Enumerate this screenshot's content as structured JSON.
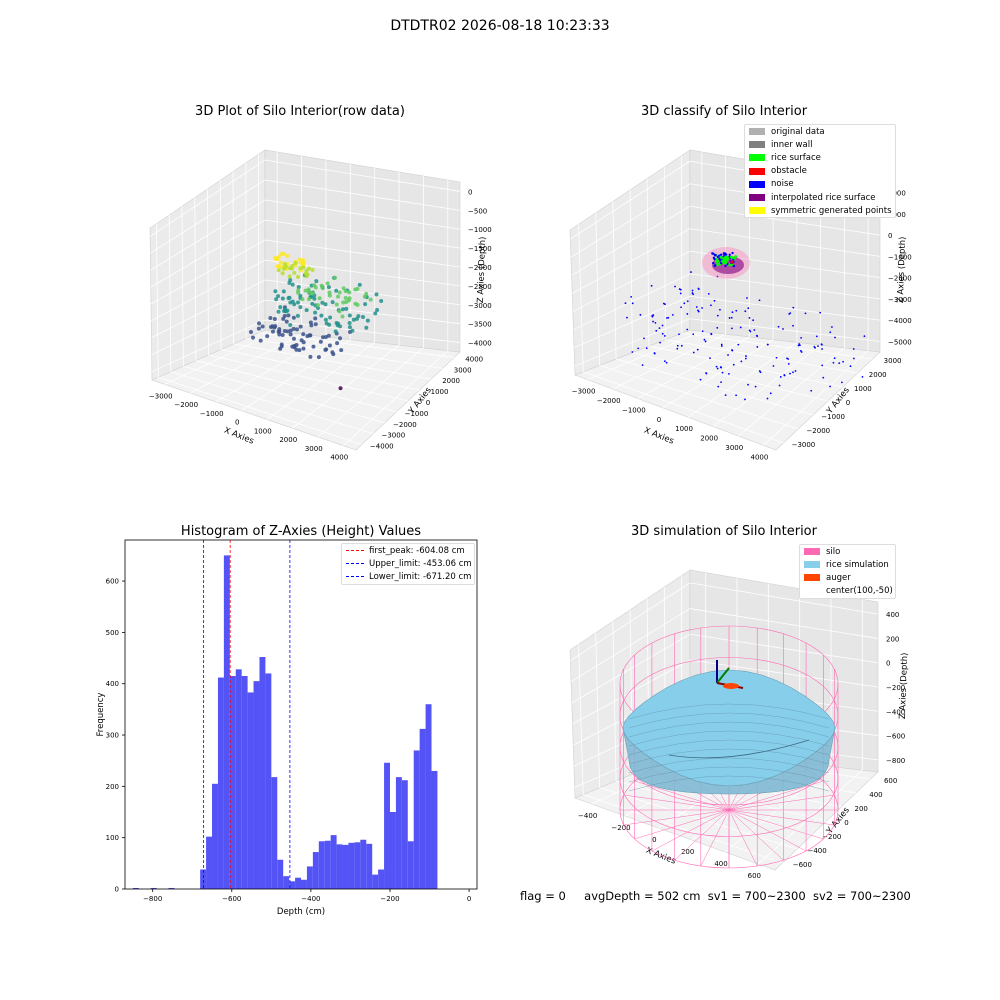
{
  "figure": {
    "suptitle": "DTDTR02 2026-08-18 10:23:33"
  },
  "footer": {
    "flag": "flag = 0",
    "avg_depth": "avgDepth = 502 cm",
    "sv1": "sv1 = 700~2300",
    "sv2": "sv2 = 700~2300"
  },
  "chart_data": [
    {
      "type": "scatter",
      "title": "3D Plot of Silo Interior(row data)",
      "xlabel": "X Axies",
      "ylabel": "Y Axies",
      "zlabel": "Z Axies (Depth)",
      "x_ticks": [
        "−3000",
        "−2000",
        "−1000",
        "0",
        "1000",
        "2000",
        "3000",
        "4000"
      ],
      "y_ticks": [
        "−4000",
        "−3000",
        "−2000",
        "−1000",
        "0",
        "1000",
        "2000",
        "3000",
        "4000"
      ],
      "z_ticks": [
        "−4000",
        "−3500",
        "−3000",
        "−2500",
        "−2000",
        "−1500",
        "−1000",
        "−500",
        "0"
      ],
      "colormap": "viridis",
      "grid": true
    },
    {
      "type": "scatter",
      "title": "3D classify of Silo Interior",
      "xlabel": "X Axies",
      "ylabel": "Y Axies",
      "zlabel": "Z Axies (Depth)",
      "x_ticks": [
        "−3000",
        "−2000",
        "−1000",
        "0",
        "1000",
        "2000",
        "3000",
        "4000"
      ],
      "y_ticks": [
        "−3000",
        "−2000",
        "−1000",
        "0",
        "1000",
        "2000",
        "3000"
      ],
      "z_ticks": [
        "−5000",
        "−4000",
        "−3000",
        "−2000",
        "−1000",
        "0",
        "1000",
        "2000"
      ],
      "legend": [
        {
          "label": "original data",
          "color": "#b0b0b0"
        },
        {
          "label": "inner wall",
          "color": "#808080"
        },
        {
          "label": "rice surface",
          "color": "#00ff00"
        },
        {
          "label": "obstacle",
          "color": "#ff0000"
        },
        {
          "label": "noise",
          "color": "#0000ff"
        },
        {
          "label": "interpolated rice surface",
          "color": "#800080"
        },
        {
          "label": "symmetric generated points",
          "color": "#ffff00"
        }
      ],
      "legend_position": "top-right",
      "grid": true
    },
    {
      "type": "bar",
      "title": "Histogram of Z-Axies (Height) Values",
      "xlabel": "Depth (cm)",
      "ylabel": "Frequency",
      "xlim": [
        -870,
        20
      ],
      "ylim": [
        0,
        680
      ],
      "x_ticks": [
        -800,
        -600,
        -400,
        -200,
        0
      ],
      "y_ticks": [
        0,
        100,
        200,
        300,
        400,
        500,
        600
      ],
      "bar_color": "#4b4bf5",
      "bins": [
        {
          "x0": -850,
          "x1": -835,
          "count": 2
        },
        {
          "x0": -805,
          "x1": -790,
          "count": 2
        },
        {
          "x0": -760,
          "x1": -745,
          "count": 2
        },
        {
          "x0": -680,
          "x1": -665,
          "count": 38
        },
        {
          "x0": -665,
          "x1": -650,
          "count": 102
        },
        {
          "x0": -650,
          "x1": -635,
          "count": 205
        },
        {
          "x0": -635,
          "x1": -620,
          "count": 412
        },
        {
          "x0": -620,
          "x1": -605,
          "count": 650
        },
        {
          "x0": -605,
          "x1": -590,
          "count": 415
        },
        {
          "x0": -590,
          "x1": -575,
          "count": 428
        },
        {
          "x0": -575,
          "x1": -560,
          "count": 415
        },
        {
          "x0": -560,
          "x1": -545,
          "count": 383
        },
        {
          "x0": -545,
          "x1": -530,
          "count": 405
        },
        {
          "x0": -530,
          "x1": -515,
          "count": 452
        },
        {
          "x0": -515,
          "x1": -500,
          "count": 420
        },
        {
          "x0": -500,
          "x1": -485,
          "count": 218
        },
        {
          "x0": -485,
          "x1": -470,
          "count": 57
        },
        {
          "x0": -470,
          "x1": -455,
          "count": 25
        },
        {
          "x0": -455,
          "x1": -440,
          "count": 15
        },
        {
          "x0": -440,
          "x1": -425,
          "count": 22
        },
        {
          "x0": -425,
          "x1": -410,
          "count": 18
        },
        {
          "x0": -410,
          "x1": -395,
          "count": 44
        },
        {
          "x0": -395,
          "x1": -380,
          "count": 72
        },
        {
          "x0": -380,
          "x1": -365,
          "count": 93
        },
        {
          "x0": -365,
          "x1": -350,
          "count": 94
        },
        {
          "x0": -350,
          "x1": -335,
          "count": 105
        },
        {
          "x0": -335,
          "x1": -320,
          "count": 87
        },
        {
          "x0": -320,
          "x1": -305,
          "count": 86
        },
        {
          "x0": -305,
          "x1": -290,
          "count": 90
        },
        {
          "x0": -290,
          "x1": -275,
          "count": 91
        },
        {
          "x0": -275,
          "x1": -260,
          "count": 96
        },
        {
          "x0": -260,
          "x1": -245,
          "count": 88
        },
        {
          "x0": -245,
          "x1": -230,
          "count": 28
        },
        {
          "x0": -230,
          "x1": -215,
          "count": 38
        },
        {
          "x0": -215,
          "x1": -200,
          "count": 246
        },
        {
          "x0": -200,
          "x1": -185,
          "count": 150
        },
        {
          "x0": -185,
          "x1": -170,
          "count": 218
        },
        {
          "x0": -170,
          "x1": -155,
          "count": 212
        },
        {
          "x0": -155,
          "x1": -140,
          "count": 93
        },
        {
          "x0": -140,
          "x1": -125,
          "count": 270
        },
        {
          "x0": -125,
          "x1": -110,
          "count": 312
        },
        {
          "x0": -110,
          "x1": -95,
          "count": 360
        },
        {
          "x0": -95,
          "x1": -80,
          "count": 230
        }
      ],
      "lines": [
        {
          "label": "first_peak: -604.08 cm",
          "x": -604.08,
          "color": "#ff0000"
        },
        {
          "label": "Upper_limit: -453.06 cm",
          "x": -453.06,
          "color": "#0000ff"
        },
        {
          "label": "Lower_limit: -671.20 cm",
          "x": -671.2,
          "color": "#0000ff"
        }
      ],
      "legend_position": "top-right"
    },
    {
      "type": "surface",
      "title": "3D simulation of Silo Interior",
      "xlabel": "X Axies",
      "ylabel": "Y Axies",
      "zlabel": "Z Axies (Depth)",
      "x_ticks": [
        "−400",
        "−200",
        "0",
        "200",
        "400",
        "600"
      ],
      "y_ticks": [
        "−600",
        "−400",
        "−200",
        "0",
        "200",
        "400",
        "600"
      ],
      "z_ticks": [
        "−800",
        "−600",
        "−400",
        "−200",
        "0",
        "200",
        "400"
      ],
      "legend": [
        {
          "label": "silo",
          "color": "#ff69b4"
        },
        {
          "label": "rice simulation",
          "color": "#87ceeb"
        },
        {
          "label": "auger",
          "color": "#ff4500"
        },
        {
          "label": "center(100,-50)",
          "color": ""
        }
      ],
      "legend_position": "top-right",
      "grid": true
    }
  ]
}
